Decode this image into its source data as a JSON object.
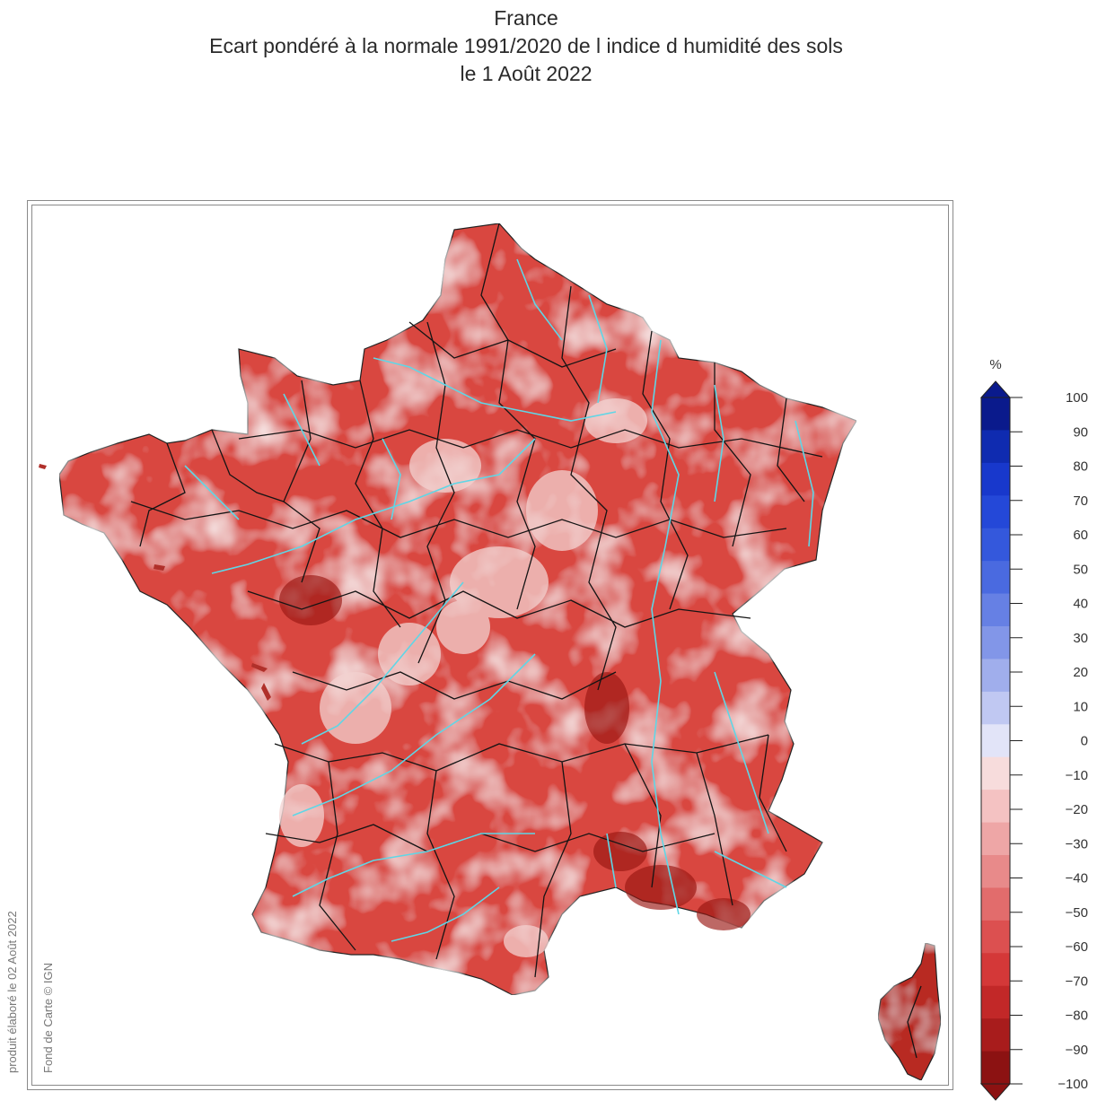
{
  "header": {
    "title": "France",
    "subtitle": "Ecart pondéré à la normale 1991/2020 de l indice d humidité des sols",
    "date": "le 1 Août 2022"
  },
  "credits": {
    "produced": "produit élaboré le 02 Août 2022",
    "basemap": "Fond de Carte © IGN"
  },
  "legend": {
    "unit": "%",
    "ticks": [
      "100",
      "90",
      "80",
      "70",
      "60",
      "50",
      "40",
      "30",
      "20",
      "10",
      "0",
      "-10",
      "-20",
      "-30",
      "-40",
      "-50",
      "-60",
      "-70",
      "-80",
      "-90",
      "-100"
    ],
    "colors_top_to_bottom": [
      "#0a1a8c",
      "#0f2bb0",
      "#1838cc",
      "#2448d8",
      "#3458dc",
      "#4a6ae0",
      "#6680e4",
      "#8296e8",
      "#a0aeec",
      "#c0c8f2",
      "#e2e4f8",
      "#f7dcdc",
      "#f4c2c2",
      "#eea6a6",
      "#e88a8a",
      "#e26c6c",
      "#dc5050",
      "#d43838",
      "#c22828",
      "#a81c1c",
      "#8c1212"
    ]
  },
  "map": {
    "regions": [
      "France métropolitaine",
      "Corse"
    ],
    "overall_color": "#d84a42",
    "river_color": "#5fd6e6",
    "border_color": "#111111"
  }
}
